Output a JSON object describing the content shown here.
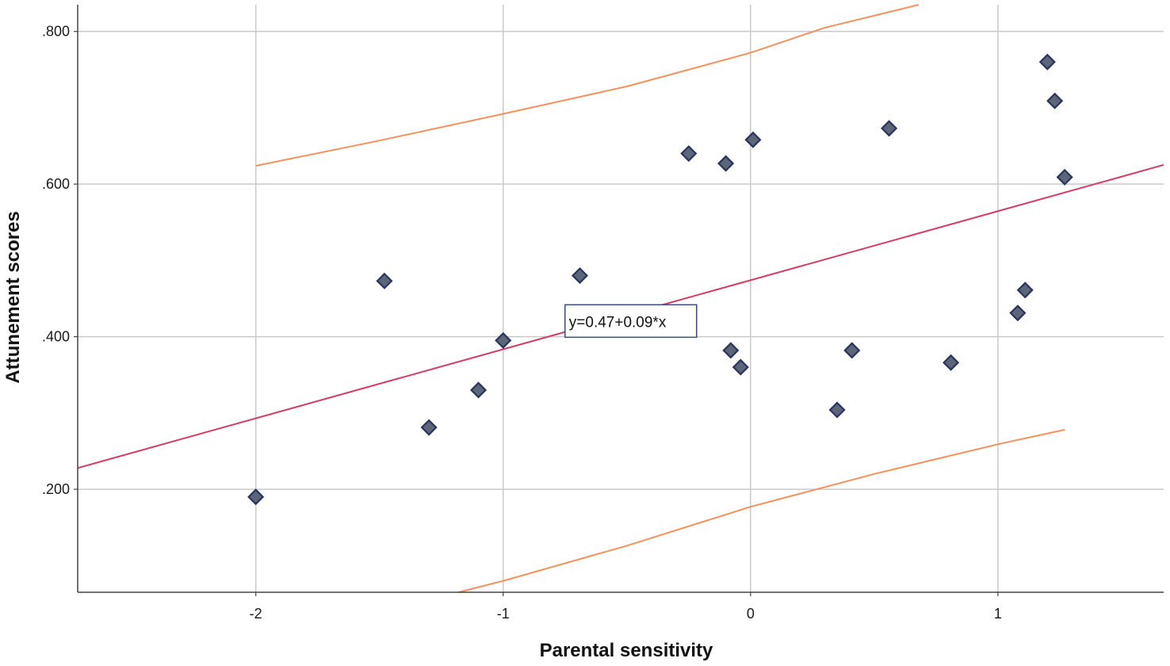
{
  "chart_data": {
    "type": "scatter",
    "title": "",
    "xlabel": "Parental sensitivity",
    "ylabel": "Attunement scores",
    "xlim": [
      -2.72,
      1.67
    ],
    "ylim": [
      0.065,
      0.835
    ],
    "x_ticks": [
      {
        "value": -2,
        "label": "-2"
      },
      {
        "value": -1,
        "label": "-1"
      },
      {
        "value": 0,
        "label": "0"
      },
      {
        "value": 1,
        "label": "1"
      }
    ],
    "y_ticks": [
      {
        "value": 0.2,
        "label": ".200"
      },
      {
        "value": 0.4,
        "label": ".400"
      },
      {
        "value": 0.6,
        "label": ".600"
      },
      {
        "value": 0.8,
        "label": ".800"
      }
    ],
    "grid": true,
    "legend": "none",
    "points": [
      {
        "x": -2.0,
        "y": 0.19
      },
      {
        "x": -1.48,
        "y": 0.473
      },
      {
        "x": -1.3,
        "y": 0.281
      },
      {
        "x": -1.1,
        "y": 0.33
      },
      {
        "x": -1.0,
        "y": 0.395
      },
      {
        "x": -0.69,
        "y": 0.48
      },
      {
        "x": -0.25,
        "y": 0.64
      },
      {
        "x": -0.1,
        "y": 0.627
      },
      {
        "x": -0.08,
        "y": 0.382
      },
      {
        "x": -0.04,
        "y": 0.36
      },
      {
        "x": 0.01,
        "y": 0.658
      },
      {
        "x": 0.35,
        "y": 0.304
      },
      {
        "x": 0.41,
        "y": 0.382
      },
      {
        "x": 0.56,
        "y": 0.673
      },
      {
        "x": 0.81,
        "y": 0.366
      },
      {
        "x": 1.08,
        "y": 0.431
      },
      {
        "x": 1.11,
        "y": 0.461
      },
      {
        "x": 1.2,
        "y": 0.76
      },
      {
        "x": 1.23,
        "y": 0.709
      },
      {
        "x": 1.27,
        "y": 0.609
      }
    ],
    "fit_line": {
      "intercept": 0.474,
      "slope": 0.0905,
      "x_range": [
        -2.72,
        1.67
      ],
      "label": "y=0.47+0.09*x",
      "label_anchor": {
        "x": -0.75,
        "y": 0.42
      }
    },
    "prediction_upper": [
      {
        "x": -2.0,
        "y": 0.624
      },
      {
        "x": -1.5,
        "y": 0.657
      },
      {
        "x": -1.0,
        "y": 0.692
      },
      {
        "x": -0.5,
        "y": 0.728
      },
      {
        "x": 0.0,
        "y": 0.772
      },
      {
        "x": 0.3,
        "y": 0.805
      },
      {
        "x": 0.68,
        "y": 0.835
      }
    ],
    "prediction_lower": [
      {
        "x": -1.18,
        "y": 0.065
      },
      {
        "x": -1.0,
        "y": 0.08
      },
      {
        "x": -0.5,
        "y": 0.126
      },
      {
        "x": 0.0,
        "y": 0.177
      },
      {
        "x": 0.5,
        "y": 0.22
      },
      {
        "x": 1.0,
        "y": 0.259
      },
      {
        "x": 1.27,
        "y": 0.278
      }
    ],
    "colors": {
      "marker_fill": "#5d6679",
      "marker_stroke": "#27355f",
      "fit_line": "#d43c66",
      "prediction_band": "#f4915c",
      "grid": "#c9c9c9",
      "axis": "#444444",
      "label_box_border": "#3b4a7c"
    }
  }
}
